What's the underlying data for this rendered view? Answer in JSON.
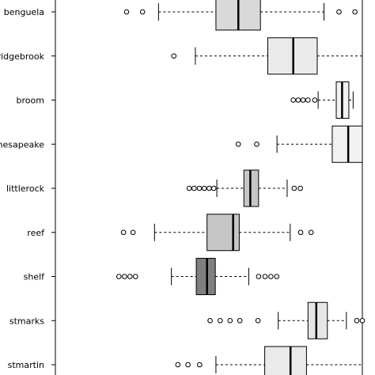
{
  "chart_data": {
    "type": "boxplot",
    "orientation": "horizontal",
    "xlim": [
      0,
      100
    ],
    "categories": [
      "benguela",
      "bridgebrook",
      "broom",
      "chesapeake",
      "littlerock",
      "reef",
      "shelf",
      "stmarks",
      "stmartin"
    ],
    "boxes": [
      {
        "name": "benguela",
        "fill": "#d9d9d9",
        "whisker_low": 33.6,
        "q1": 52.3,
        "median": 59.6,
        "q3": 66.8,
        "whisker_high": 87.5,
        "outliers": [
          23.2,
          28.4,
          92.4,
          97.6
        ]
      },
      {
        "name": "bridgebrook",
        "fill": "#eaeaea",
        "whisker_low": 45.6,
        "q1": 69.2,
        "median": 77.5,
        "q3": 85.3,
        "whisker_high": 100,
        "outliers": [
          38.6
        ]
      },
      {
        "name": "broom",
        "fill": "#f2f2f2",
        "whisker_low": 85.6,
        "q1": 91.5,
        "median": 93.4,
        "q3": 95.6,
        "whisker_high": 97.0,
        "outliers": [
          77.5,
          79.1,
          80.7,
          82.3,
          84.5
        ]
      },
      {
        "name": "chesapeake",
        "fill": "#f2f2f2",
        "whisker_low": 72.2,
        "q1": 90.2,
        "median": 95.4,
        "q3": 100,
        "whisker_high": 100,
        "outliers": [
          59.6,
          65.6
        ]
      },
      {
        "name": "littlerock",
        "fill": "#c6c6c6",
        "whisker_low": 52.6,
        "q1": 61.4,
        "median": 63.5,
        "q3": 66.2,
        "whisker_high": 75.5,
        "outliers": [
          43.6,
          45.2,
          46.9,
          48.5,
          50.1,
          51.6,
          77.8,
          79.8
        ]
      },
      {
        "name": "reef",
        "fill": "#c6c6c6",
        "whisker_low": 32.3,
        "q1": 49.4,
        "median": 57.9,
        "q3": 59.9,
        "whisker_high": 76.5,
        "outliers": [
          22.2,
          25.3,
          79.9,
          83.3
        ]
      },
      {
        "name": "shelf",
        "fill": "#808080",
        "whisker_low": 37.8,
        "q1": 45.9,
        "median": 49.4,
        "q3": 52.1,
        "whisker_high": 63.0,
        "outliers": [
          20.7,
          22.5,
          24.3,
          26.1,
          66.2,
          68.3,
          70.2,
          72.1
        ]
      },
      {
        "name": "stmarks",
        "fill": "#e6e6e6",
        "whisker_low": 72.6,
        "q1": 82.3,
        "median": 85.0,
        "q3": 88.6,
        "whisker_high": 94.8,
        "outliers": [
          50.4,
          53.7,
          56.9,
          60.1,
          66.0,
          98.2,
          100
        ]
      },
      {
        "name": "stmartin",
        "fill": "#eaeaea",
        "whisker_low": 52.3,
        "q1": 68.2,
        "median": 76.6,
        "q3": 81.8,
        "whisker_high": 100,
        "outliers": [
          39.9,
          43.2,
          47.0
        ]
      }
    ]
  }
}
